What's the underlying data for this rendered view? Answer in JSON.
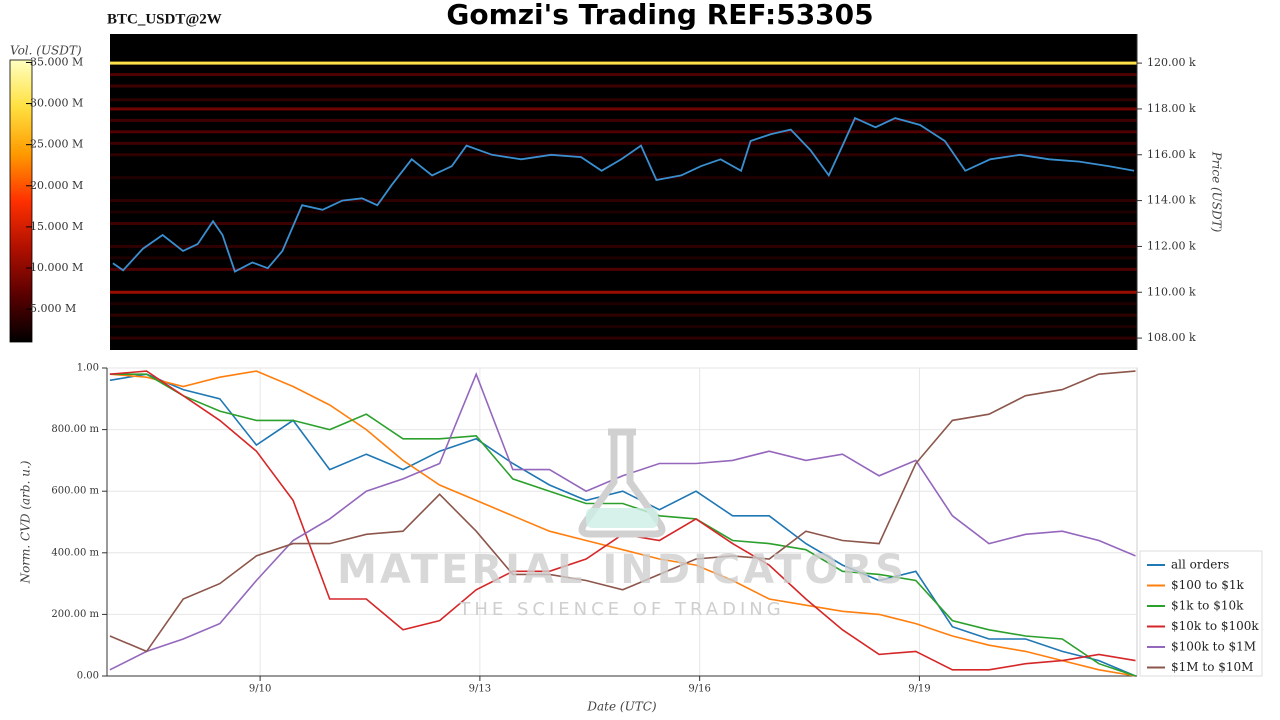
{
  "chart_data": [
    {
      "type": "heatmap",
      "title": "Gomzi's Trading REF:53305",
      "subtitle": "BTC_USDT@2W",
      "y_label": "Price (USDT)",
      "colorbar_label": "Vol. (USDT)",
      "xlim": [
        7.91,
        21.97
      ],
      "ylim": [
        107480,
        121270
      ],
      "yticks": [
        {
          "value": 108000,
          "label": "108.00 k"
        },
        {
          "value": 110000,
          "label": "110.00 k"
        },
        {
          "value": 112000,
          "label": "112.00 k"
        },
        {
          "value": 114000,
          "label": "114.00 k"
        },
        {
          "value": 116000,
          "label": "116.00 k"
        },
        {
          "value": 118000,
          "label": "118.00 k"
        },
        {
          "value": 120000,
          "label": "120.00 k"
        }
      ],
      "clim": [
        1000000,
        35300000
      ],
      "cticks": [
        {
          "value": 5000000,
          "label": "5.000 M"
        },
        {
          "value": 10000000,
          "label": "10.000 M"
        },
        {
          "value": 15000000,
          "label": "15.000 M"
        },
        {
          "value": 20000000,
          "label": "20.000 M"
        },
        {
          "value": 25000000,
          "label": "25.000 M"
        },
        {
          "value": 30000000,
          "label": "30.000 M"
        },
        {
          "value": 35000000,
          "label": "35.000 M"
        }
      ],
      "colorscale": [
        "#000000",
        "#5a0000",
        "#b01000",
        "#ff3000",
        "#ff9a00",
        "#ffe040",
        "#ffffc0"
      ],
      "levels": {
        "prices": [
          120000,
          119500,
          119000,
          118400,
          118000,
          117500,
          117000,
          116500,
          116000,
          115000,
          114000,
          113500,
          113000,
          112000,
          111500,
          111000,
          110000,
          109500,
          109000,
          108500,
          108000
        ],
        "volumes": [
          30000000,
          6000000,
          5000000,
          4000000,
          8000000,
          5000000,
          6000000,
          5000000,
          4000000,
          3000000,
          4000000,
          3000000,
          5000000,
          4000000,
          3000000,
          6000000,
          11000000,
          3000000,
          4000000,
          3000000,
          4000000
        ]
      },
      "series": [
        {
          "color": "#3a8fd0",
          "x": [
            7.95,
            8.09,
            8.36,
            8.63,
            8.91,
            9.11,
            9.32,
            9.45,
            9.62,
            9.86,
            10.07,
            10.27,
            10.54,
            10.82,
            11.09,
            11.36,
            11.57,
            11.77,
            12.04,
            12.32,
            12.59,
            12.79,
            13.14,
            13.54,
            13.95,
            14.36,
            14.64,
            14.91,
            15.18,
            15.39,
            15.73,
            16.0,
            16.27,
            16.55,
            16.68,
            16.96,
            17.23,
            17.5,
            17.75,
            17.91,
            18.11,
            18.39,
            18.66,
            19.0,
            19.34,
            19.62,
            19.96,
            20.37,
            20.77,
            21.18,
            21.59,
            21.93
          ],
          "values": [
            111270,
            110960,
            111900,
            112500,
            111800,
            112100,
            113100,
            112500,
            110900,
            111300,
            111050,
            111800,
            113800,
            113600,
            114000,
            114100,
            113800,
            114700,
            115800,
            115100,
            115500,
            116400,
            116000,
            115800,
            116000,
            115900,
            115300,
            115800,
            116400,
            114900,
            115100,
            115500,
            115800,
            115300,
            116600,
            116900,
            117100,
            116200,
            115100,
            116200,
            117600,
            117200,
            117600,
            117300,
            116600,
            115300,
            115800,
            116000,
            115800,
            115700,
            115500,
            115300
          ]
        }
      ]
    },
    {
      "type": "line",
      "x_label": "Date (UTC)",
      "y_label": "Norm. CVD (arb. u.)",
      "watermark": "MATERIAL INDICATORS",
      "watermark_sub": "THE SCIENCE OF TRADING",
      "xlim": [
        7.91,
        21.97
      ],
      "xticks": [
        {
          "value": 10,
          "label": "9/10"
        },
        {
          "value": 13,
          "label": "9/13"
        },
        {
          "value": 16,
          "label": "9/16"
        },
        {
          "value": 19,
          "label": "9/19"
        }
      ],
      "ylim": [
        0,
        1
      ],
      "yticks": [
        {
          "value": 0,
          "label": "0.00"
        },
        {
          "value": 0.2,
          "label": "200.00 m"
        },
        {
          "value": 0.4,
          "label": "400.00 m"
        },
        {
          "value": 0.6,
          "label": "600.00 m"
        },
        {
          "value": 0.8,
          "label": "800.00 m"
        },
        {
          "value": 1,
          "label": "1.00"
        }
      ],
      "grid": true,
      "legend": "right",
      "x": [
        7.95,
        8.45,
        8.95,
        9.45,
        9.95,
        10.45,
        10.95,
        11.45,
        11.95,
        12.45,
        12.95,
        13.45,
        13.95,
        14.45,
        14.95,
        15.45,
        15.95,
        16.45,
        16.95,
        17.45,
        17.95,
        18.45,
        18.95,
        19.45,
        19.95,
        20.45,
        20.95,
        21.45,
        21.95
      ],
      "series": [
        {
          "name": "all orders",
          "color": "#1f77b4",
          "values": [
            0.96,
            0.98,
            0.93,
            0.9,
            0.75,
            0.83,
            0.67,
            0.72,
            0.67,
            0.73,
            0.77,
            0.69,
            0.62,
            0.57,
            0.6,
            0.54,
            0.6,
            0.52,
            0.52,
            0.43,
            0.36,
            0.31,
            0.34,
            0.16,
            0.12,
            0.12,
            0.08,
            0.05,
            0.0
          ]
        },
        {
          "name": "$100 to $1k",
          "color": "#ff7f0e",
          "values": [
            0.98,
            0.97,
            0.94,
            0.97,
            0.99,
            0.94,
            0.88,
            0.8,
            0.7,
            0.62,
            0.57,
            0.52,
            0.47,
            0.44,
            0.41,
            0.38,
            0.36,
            0.31,
            0.25,
            0.23,
            0.21,
            0.2,
            0.17,
            0.13,
            0.1,
            0.08,
            0.05,
            0.02,
            0.0
          ]
        },
        {
          "name": "$1k to $10k",
          "color": "#2ca02c",
          "values": [
            0.98,
            0.98,
            0.91,
            0.86,
            0.83,
            0.83,
            0.8,
            0.85,
            0.77,
            0.77,
            0.78,
            0.64,
            0.6,
            0.56,
            0.56,
            0.52,
            0.51,
            0.44,
            0.43,
            0.41,
            0.34,
            0.33,
            0.31,
            0.18,
            0.15,
            0.13,
            0.12,
            0.04,
            0.0
          ]
        },
        {
          "name": "$10k to $100k",
          "color": "#d62728",
          "values": [
            0.98,
            0.99,
            0.91,
            0.83,
            0.73,
            0.57,
            0.25,
            0.25,
            0.15,
            0.18,
            0.28,
            0.34,
            0.34,
            0.38,
            0.46,
            0.44,
            0.51,
            0.43,
            0.36,
            0.25,
            0.15,
            0.07,
            0.08,
            0.02,
            0.02,
            0.04,
            0.05,
            0.07,
            0.05
          ]
        },
        {
          "name": "$100k to $1M",
          "color": "#9467bd",
          "values": [
            0.02,
            0.08,
            0.12,
            0.17,
            0.31,
            0.44,
            0.51,
            0.6,
            0.64,
            0.69,
            0.98,
            0.67,
            0.67,
            0.6,
            0.65,
            0.69,
            0.69,
            0.7,
            0.73,
            0.7,
            0.72,
            0.65,
            0.7,
            0.52,
            0.43,
            0.46,
            0.47,
            0.44,
            0.39
          ]
        },
        {
          "name": "$1M to $10M",
          "color": "#8c564b",
          "values": [
            0.13,
            0.08,
            0.25,
            0.3,
            0.39,
            0.43,
            0.43,
            0.46,
            0.47,
            0.59,
            0.47,
            0.33,
            0.33,
            0.31,
            0.28,
            0.33,
            0.38,
            0.39,
            0.38,
            0.47,
            0.44,
            0.43,
            0.69,
            0.83,
            0.85,
            0.91,
            0.93,
            0.98,
            0.99
          ]
        }
      ]
    }
  ]
}
